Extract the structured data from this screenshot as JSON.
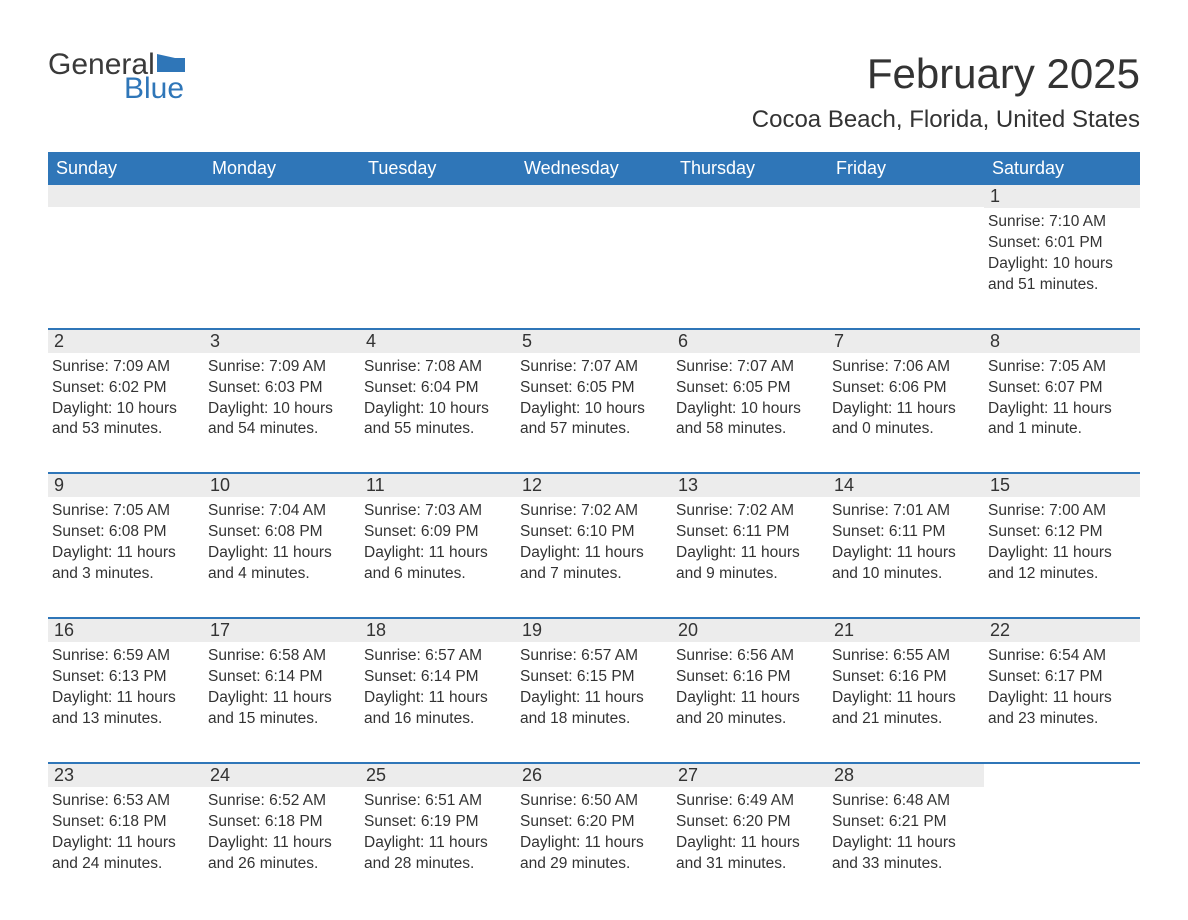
{
  "logo": {
    "text_general": "General",
    "text_blue": "Blue",
    "flag_color": "#2f76b8",
    "text_dark": "#3a3a3a"
  },
  "title": "February 2025",
  "location": "Cocoa Beach, Florida, United States",
  "colors": {
    "header_bg": "#2f76b8",
    "header_text": "#ffffff",
    "row_divider": "#2f76b8",
    "daynum_bg": "#ececec",
    "body_text": "#333333",
    "page_bg": "#ffffff"
  },
  "fonts": {
    "title_size_pt": 42,
    "location_size_pt": 24,
    "weekday_size_pt": 18,
    "daynum_size_pt": 18,
    "body_size_pt": 15.5,
    "logo_size_pt": 30
  },
  "weekdays": [
    "Sunday",
    "Monday",
    "Tuesday",
    "Wednesday",
    "Thursday",
    "Friday",
    "Saturday"
  ],
  "weeks": [
    [
      {
        "blank": true
      },
      {
        "blank": true
      },
      {
        "blank": true
      },
      {
        "blank": true
      },
      {
        "blank": true
      },
      {
        "blank": true
      },
      {
        "n": "1",
        "sunrise": "Sunrise: 7:10 AM",
        "sunset": "Sunset: 6:01 PM",
        "d1": "Daylight: 10 hours",
        "d2": "and 51 minutes."
      }
    ],
    [
      {
        "n": "2",
        "sunrise": "Sunrise: 7:09 AM",
        "sunset": "Sunset: 6:02 PM",
        "d1": "Daylight: 10 hours",
        "d2": "and 53 minutes."
      },
      {
        "n": "3",
        "sunrise": "Sunrise: 7:09 AM",
        "sunset": "Sunset: 6:03 PM",
        "d1": "Daylight: 10 hours",
        "d2": "and 54 minutes."
      },
      {
        "n": "4",
        "sunrise": "Sunrise: 7:08 AM",
        "sunset": "Sunset: 6:04 PM",
        "d1": "Daylight: 10 hours",
        "d2": "and 55 minutes."
      },
      {
        "n": "5",
        "sunrise": "Sunrise: 7:07 AM",
        "sunset": "Sunset: 6:05 PM",
        "d1": "Daylight: 10 hours",
        "d2": "and 57 minutes."
      },
      {
        "n": "6",
        "sunrise": "Sunrise: 7:07 AM",
        "sunset": "Sunset: 6:05 PM",
        "d1": "Daylight: 10 hours",
        "d2": "and 58 minutes."
      },
      {
        "n": "7",
        "sunrise": "Sunrise: 7:06 AM",
        "sunset": "Sunset: 6:06 PM",
        "d1": "Daylight: 11 hours",
        "d2": "and 0 minutes."
      },
      {
        "n": "8",
        "sunrise": "Sunrise: 7:05 AM",
        "sunset": "Sunset: 6:07 PM",
        "d1": "Daylight: 11 hours",
        "d2": "and 1 minute."
      }
    ],
    [
      {
        "n": "9",
        "sunrise": "Sunrise: 7:05 AM",
        "sunset": "Sunset: 6:08 PM",
        "d1": "Daylight: 11 hours",
        "d2": "and 3 minutes."
      },
      {
        "n": "10",
        "sunrise": "Sunrise: 7:04 AM",
        "sunset": "Sunset: 6:08 PM",
        "d1": "Daylight: 11 hours",
        "d2": "and 4 minutes."
      },
      {
        "n": "11",
        "sunrise": "Sunrise: 7:03 AM",
        "sunset": "Sunset: 6:09 PM",
        "d1": "Daylight: 11 hours",
        "d2": "and 6 minutes."
      },
      {
        "n": "12",
        "sunrise": "Sunrise: 7:02 AM",
        "sunset": "Sunset: 6:10 PM",
        "d1": "Daylight: 11 hours",
        "d2": "and 7 minutes."
      },
      {
        "n": "13",
        "sunrise": "Sunrise: 7:02 AM",
        "sunset": "Sunset: 6:11 PM",
        "d1": "Daylight: 11 hours",
        "d2": "and 9 minutes."
      },
      {
        "n": "14",
        "sunrise": "Sunrise: 7:01 AM",
        "sunset": "Sunset: 6:11 PM",
        "d1": "Daylight: 11 hours",
        "d2": "and 10 minutes."
      },
      {
        "n": "15",
        "sunrise": "Sunrise: 7:00 AM",
        "sunset": "Sunset: 6:12 PM",
        "d1": "Daylight: 11 hours",
        "d2": "and 12 minutes."
      }
    ],
    [
      {
        "n": "16",
        "sunrise": "Sunrise: 6:59 AM",
        "sunset": "Sunset: 6:13 PM",
        "d1": "Daylight: 11 hours",
        "d2": "and 13 minutes."
      },
      {
        "n": "17",
        "sunrise": "Sunrise: 6:58 AM",
        "sunset": "Sunset: 6:14 PM",
        "d1": "Daylight: 11 hours",
        "d2": "and 15 minutes."
      },
      {
        "n": "18",
        "sunrise": "Sunrise: 6:57 AM",
        "sunset": "Sunset: 6:14 PM",
        "d1": "Daylight: 11 hours",
        "d2": "and 16 minutes."
      },
      {
        "n": "19",
        "sunrise": "Sunrise: 6:57 AM",
        "sunset": "Sunset: 6:15 PM",
        "d1": "Daylight: 11 hours",
        "d2": "and 18 minutes."
      },
      {
        "n": "20",
        "sunrise": "Sunrise: 6:56 AM",
        "sunset": "Sunset: 6:16 PM",
        "d1": "Daylight: 11 hours",
        "d2": "and 20 minutes."
      },
      {
        "n": "21",
        "sunrise": "Sunrise: 6:55 AM",
        "sunset": "Sunset: 6:16 PM",
        "d1": "Daylight: 11 hours",
        "d2": "and 21 minutes."
      },
      {
        "n": "22",
        "sunrise": "Sunrise: 6:54 AM",
        "sunset": "Sunset: 6:17 PM",
        "d1": "Daylight: 11 hours",
        "d2": "and 23 minutes."
      }
    ],
    [
      {
        "n": "23",
        "sunrise": "Sunrise: 6:53 AM",
        "sunset": "Sunset: 6:18 PM",
        "d1": "Daylight: 11 hours",
        "d2": "and 24 minutes."
      },
      {
        "n": "24",
        "sunrise": "Sunrise: 6:52 AM",
        "sunset": "Sunset: 6:18 PM",
        "d1": "Daylight: 11 hours",
        "d2": "and 26 minutes."
      },
      {
        "n": "25",
        "sunrise": "Sunrise: 6:51 AM",
        "sunset": "Sunset: 6:19 PM",
        "d1": "Daylight: 11 hours",
        "d2": "and 28 minutes."
      },
      {
        "n": "26",
        "sunrise": "Sunrise: 6:50 AM",
        "sunset": "Sunset: 6:20 PM",
        "d1": "Daylight: 11 hours",
        "d2": "and 29 minutes."
      },
      {
        "n": "27",
        "sunrise": "Sunrise: 6:49 AM",
        "sunset": "Sunset: 6:20 PM",
        "d1": "Daylight: 11 hours",
        "d2": "and 31 minutes."
      },
      {
        "n": "28",
        "sunrise": "Sunrise: 6:48 AM",
        "sunset": "Sunset: 6:21 PM",
        "d1": "Daylight: 11 hours",
        "d2": "and 33 minutes."
      },
      {
        "blank": true,
        "no_bar": true
      }
    ]
  ]
}
